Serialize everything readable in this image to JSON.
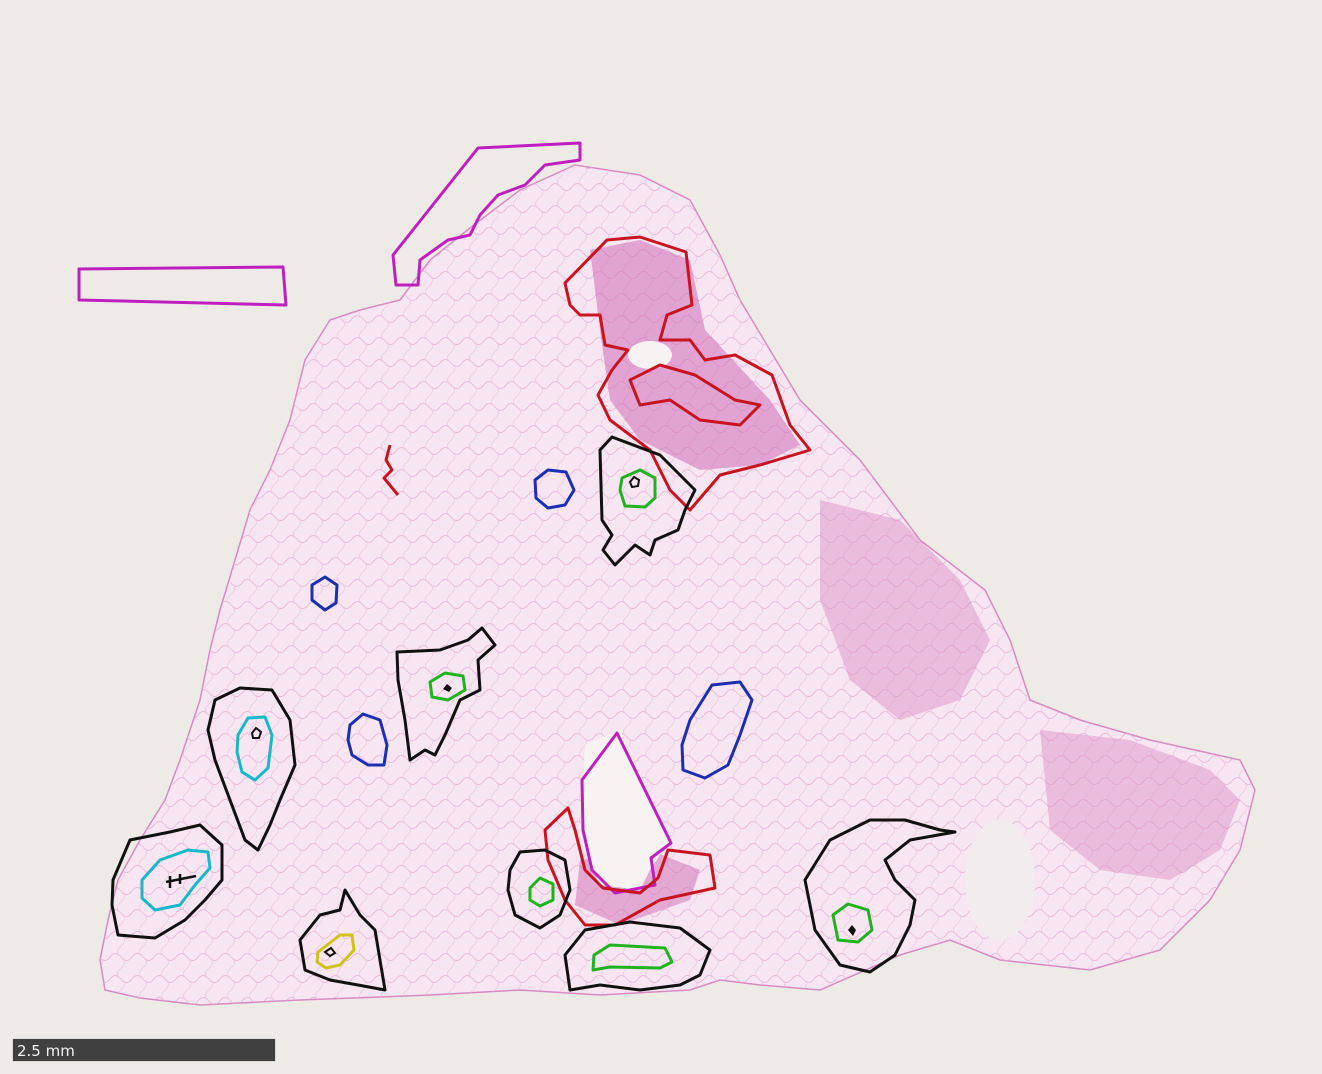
{
  "viewer": {
    "background": "#eeebe7"
  },
  "tissue": {
    "fill": "#f7e6f1",
    "stroke": "#d58bc2",
    "dense_stain": "#cf6cb6"
  },
  "annotation_colors": {
    "magenta": "#c01fc0",
    "red": "#c8141f",
    "black": "#111111",
    "blue": "#1b2fb0",
    "green": "#1fb31f",
    "cyan": "#18b8c8",
    "yellow": "#d0c21a"
  },
  "scale_bar": {
    "label": "2.5 mm"
  }
}
